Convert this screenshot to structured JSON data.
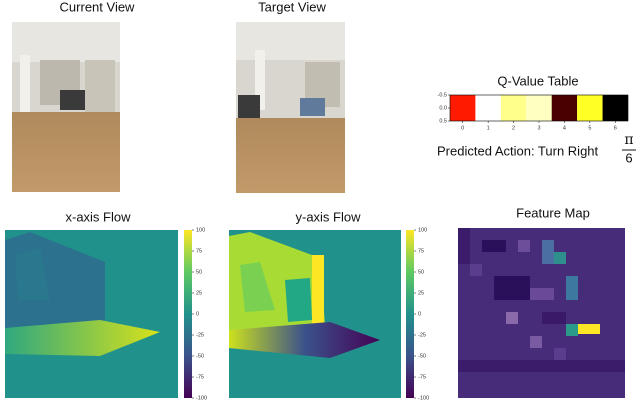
{
  "current_view": {
    "title": "Current View"
  },
  "target_view": {
    "title": "Target View"
  },
  "q_table": {
    "title": "Q-Value Table",
    "colors": [
      "#ff1a00",
      "#ffffff",
      "#ffff8a",
      "#ffffc2",
      "#4a0000",
      "#ffff26",
      "#000000"
    ],
    "xticks": [
      0,
      1,
      2,
      3,
      4,
      5,
      6
    ],
    "ylim": [
      -0.5,
      0.5
    ],
    "yticks": [
      -0.5,
      {
        "value": 0,
        "label": "0.0"
      },
      0.5
    ],
    "predicted_action": "Predicted Action: Turn Right",
    "fraction_numerator": "π",
    "fraction_denominator": "6"
  },
  "x_flow": {
    "title": "x-axis Flow",
    "clim": [
      -100,
      100
    ],
    "ticks": [
      100,
      75,
      50,
      25,
      0,
      -25,
      -50,
      -75,
      -100
    ]
  },
  "y_flow": {
    "title": "y-axis Flow",
    "clim": [
      -100,
      100
    ],
    "ticks": [
      100,
      75,
      50,
      25,
      0,
      -25,
      -50,
      -75,
      -100
    ]
  },
  "feature_map": {
    "title": "Feature Map"
  }
}
